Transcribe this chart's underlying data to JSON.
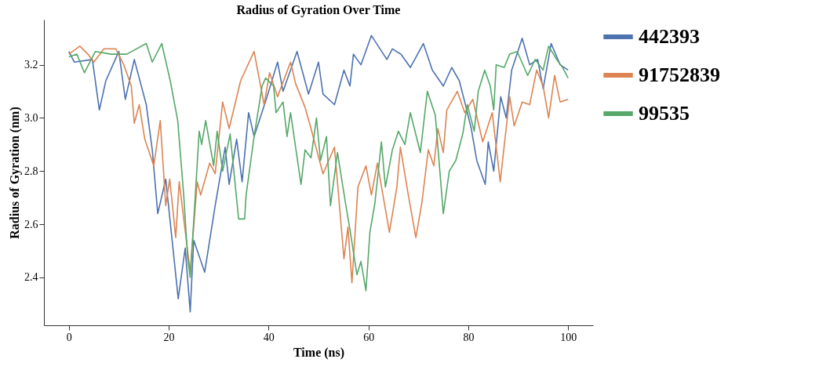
{
  "chart_data": {
    "type": "line",
    "title": "Radius of Gyration Over Time",
    "xlabel": "Time (ns)",
    "ylabel": "Radius of Gyration (nm)",
    "xlim": [
      -5,
      105
    ],
    "xticks": [
      0,
      20,
      40,
      60,
      80,
      100
    ],
    "ylim": [
      2.22,
      3.37
    ],
    "yticks": [
      2.4,
      2.6,
      2.8,
      {
        "value": 3.0,
        "label": "3.0"
      },
      3.2
    ],
    "grid": false,
    "legend": "right",
    "marker": "none",
    "line_style": "solid",
    "series": [
      {
        "name": "442393",
        "color": "#4c72b0",
        "x": [
          0,
          1.1,
          4.7,
          6.1,
          7.4,
          10,
          11.3,
          13.1,
          15.5,
          16.7,
          17.8,
          19.4,
          21.9,
          23.3,
          24.3,
          25,
          27.2,
          29.3,
          31.3,
          32.1,
          33.6,
          34.7,
          36,
          37.1,
          39.7,
          41.8,
          42.9,
          45.7,
          48,
          50,
          50.9,
          53.2,
          55.1,
          56.3,
          57,
          58.5,
          60.6,
          63.7,
          64.8,
          66.5,
          68.4,
          71,
          72.8,
          75,
          76.7,
          78.2,
          79.3,
          80.6,
          81.7,
          83.4,
          84,
          85.1,
          86.5,
          87.6,
          88.7,
          90.8,
          92.3,
          93.9,
          95,
          96.6,
          98.4,
          100
        ],
        "values": [
          3.25,
          3.21,
          3.22,
          3.03,
          3.14,
          3.25,
          3.07,
          3.22,
          3.05,
          2.88,
          2.64,
          2.77,
          2.32,
          2.51,
          2.27,
          2.54,
          2.42,
          2.67,
          2.89,
          2.75,
          2.92,
          2.76,
          3.02,
          2.93,
          3.08,
          3.21,
          3.1,
          3.25,
          3.09,
          3.21,
          3.09,
          3.05,
          3.18,
          3.12,
          3.24,
          3.2,
          3.31,
          3.22,
          3.26,
          3.24,
          3.19,
          3.28,
          3.18,
          3.12,
          3.19,
          3.14,
          3.06,
          2.96,
          2.84,
          2.75,
          2.91,
          2.8,
          3.08,
          3.0,
          3.18,
          3.3,
          3.2,
          3.22,
          3.11,
          3.28,
          3.2,
          3.18
        ]
      },
      {
        "name": "91752839",
        "color": "#dd8452",
        "x": [
          0,
          2.2,
          3.8,
          5,
          7,
          9.4,
          11,
          12.5,
          13.1,
          14.1,
          15.2,
          17,
          18.3,
          19.4,
          20.2,
          21.4,
          22.1,
          24.3,
          25.7,
          26.4,
          28.2,
          29.3,
          30.8,
          32.1,
          34.4,
          37.1,
          39.1,
          40.2,
          41.8,
          44.4,
          45.4,
          47.3,
          48.5,
          50.9,
          53.2,
          55.1,
          55.9,
          56.7,
          57.9,
          59.5,
          60.6,
          61.8,
          64.2,
          65.7,
          66.4,
          67.9,
          69.5,
          70.7,
          72,
          73.1,
          73.9,
          75,
          75.7,
          77.8,
          79.3,
          80.9,
          82.9,
          84.8,
          86.4,
          88.3,
          89.2,
          90.8,
          92.3,
          93.7,
          95,
          96.1,
          97.3,
          98.4,
          100
        ],
        "values": [
          3.24,
          3.27,
          3.24,
          3.21,
          3.26,
          3.26,
          3.2,
          3.12,
          2.98,
          3.05,
          2.92,
          2.82,
          2.99,
          2.67,
          2.77,
          2.55,
          2.76,
          2.42,
          2.76,
          2.71,
          2.83,
          2.79,
          3.06,
          2.96,
          3.14,
          3.25,
          3.05,
          3.17,
          3.08,
          3.21,
          3.13,
          3.04,
          2.96,
          2.79,
          2.89,
          2.47,
          2.59,
          2.38,
          2.74,
          2.82,
          2.71,
          2.83,
          2.57,
          2.74,
          2.89,
          2.72,
          2.55,
          2.68,
          2.88,
          2.82,
          2.96,
          2.87,
          3.03,
          3.1,
          3.02,
          3.07,
          2.91,
          3.02,
          2.76,
          3.08,
          2.97,
          3.06,
          3.05,
          3.18,
          3.12,
          3.0,
          3.16,
          3.06,
          3.07
        ]
      },
      {
        "name": "99535",
        "color": "#55a868",
        "x": [
          0,
          1.6,
          3.1,
          5.3,
          8.5,
          11.6,
          15.5,
          16.7,
          18.6,
          20.3,
          21.8,
          23,
          23.8,
          24.3,
          25,
          26.1,
          26.6,
          27.4,
          29,
          29.7,
          30.8,
          32.3,
          34,
          35.2,
          35.5,
          37.1,
          38.7,
          39.4,
          41,
          41.5,
          42.9,
          43.7,
          44.4,
          46.5,
          47.3,
          48.5,
          49.6,
          50.4,
          51.6,
          52.4,
          53.8,
          55.4,
          56.3,
          57.7,
          58.5,
          59.5,
          60.3,
          61.3,
          62.6,
          63.4,
          64.8,
          66,
          67.3,
          68.4,
          70.4,
          71.8,
          73.4,
          75,
          76.2,
          77.5,
          78.9,
          79.8,
          81.2,
          82,
          83.3,
          84.4,
          85.1,
          85.6,
          87.2,
          88.3,
          89.8,
          91.9,
          93.4,
          95,
          96.1,
          97.7,
          98.9,
          100
        ],
        "values": [
          3.23,
          3.24,
          3.17,
          3.25,
          3.24,
          3.24,
          3.28,
          3.21,
          3.28,
          3.14,
          2.99,
          2.71,
          2.47,
          2.4,
          2.61,
          2.95,
          2.9,
          2.99,
          2.82,
          2.95,
          2.8,
          2.94,
          2.62,
          2.62,
          2.71,
          2.93,
          3.12,
          3.15,
          3.12,
          3.02,
          3.06,
          2.93,
          3.02,
          2.75,
          2.88,
          2.85,
          3.0,
          2.84,
          2.93,
          2.67,
          2.87,
          2.68,
          2.58,
          2.41,
          2.46,
          2.35,
          2.57,
          2.68,
          2.91,
          2.74,
          2.88,
          2.95,
          2.9,
          3.02,
          2.87,
          3.1,
          3.01,
          2.64,
          2.8,
          2.84,
          2.94,
          3.05,
          2.95,
          3.1,
          3.18,
          3.12,
          3.03,
          3.2,
          3.19,
          3.24,
          3.25,
          3.16,
          3.22,
          3.18,
          3.27,
          3.22,
          3.19,
          3.15
        ]
      }
    ]
  }
}
